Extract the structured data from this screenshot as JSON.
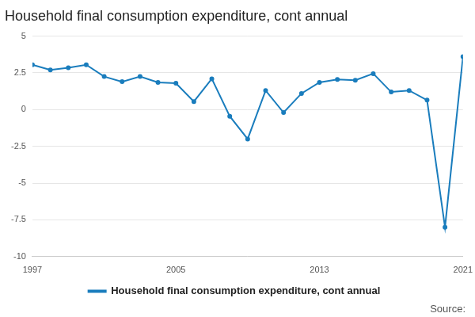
{
  "chart_data": {
    "type": "line",
    "title": "Household final consumption expenditure, cont annual",
    "source": "Source:",
    "x": [
      1997,
      1998,
      1999,
      2000,
      2001,
      2002,
      2003,
      2004,
      2005,
      2006,
      2007,
      2008,
      2009,
      2010,
      2011,
      2012,
      2013,
      2014,
      2015,
      2016,
      2017,
      2018,
      2019,
      2020,
      2021
    ],
    "series": [
      {
        "name": "Household final consumption expenditure, cont annual",
        "color": "#1a7dbd",
        "marker": "circle",
        "values": [
          3.05,
          2.7,
          2.85,
          3.05,
          2.25,
          1.9,
          2.25,
          1.85,
          1.8,
          0.55,
          2.1,
          -0.45,
          -2.0,
          1.3,
          -0.2,
          1.1,
          1.85,
          2.05,
          2.0,
          2.45,
          1.2,
          1.3,
          0.65,
          -8.0,
          3.6
        ]
      }
    ],
    "xlim": [
      1997,
      2021
    ],
    "xticks": [
      1997,
      2005,
      2013,
      2021
    ],
    "ylim": [
      -10,
      5
    ],
    "yticks": [
      -10,
      -7.5,
      -5,
      -2.5,
      0,
      2.5,
      5
    ],
    "grid": true,
    "legend": "bottom"
  }
}
